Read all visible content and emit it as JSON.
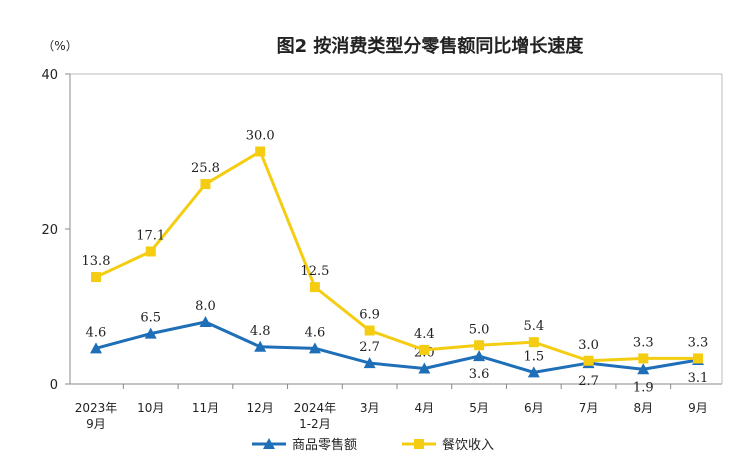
{
  "chart_data": {
    "type": "line",
    "title": "图2 按消费类型分零售额同比增长速度",
    "ylabel": "（%）",
    "ylim": [
      0,
      40
    ],
    "yticks": [
      0,
      20,
      40
    ],
    "categories": [
      [
        "2023年",
        "9月"
      ],
      [
        "10月"
      ],
      [
        "11月"
      ],
      [
        "12月"
      ],
      [
        "2024年",
        "1-2月"
      ],
      [
        "3月"
      ],
      [
        "4月"
      ],
      [
        "5月"
      ],
      [
        "6月"
      ],
      [
        "7月"
      ],
      [
        "8月"
      ],
      [
        "9月"
      ]
    ],
    "series": [
      {
        "name": "商品零售额",
        "color": "#1F6FB8",
        "marker": "triangle",
        "values": [
          4.6,
          6.5,
          8.0,
          4.8,
          4.6,
          2.7,
          2.0,
          3.6,
          1.5,
          2.7,
          1.9,
          3.1
        ],
        "label_position": [
          "above",
          "above",
          "above",
          "above",
          "above",
          "above",
          "above",
          "below",
          "above",
          "below",
          "below",
          "below"
        ]
      },
      {
        "name": "餐饮收入",
        "color": "#F4CD12",
        "marker": "square",
        "values": [
          13.8,
          17.1,
          25.8,
          30.0,
          12.5,
          6.9,
          4.4,
          5.0,
          5.4,
          3.0,
          3.3,
          3.3
        ],
        "label_position": [
          "above",
          "above",
          "above",
          "above",
          "above",
          "above",
          "above",
          "above",
          "above",
          "above",
          "above",
          "above"
        ]
      }
    ],
    "legend_position": "bottom-center",
    "grid": false
  }
}
